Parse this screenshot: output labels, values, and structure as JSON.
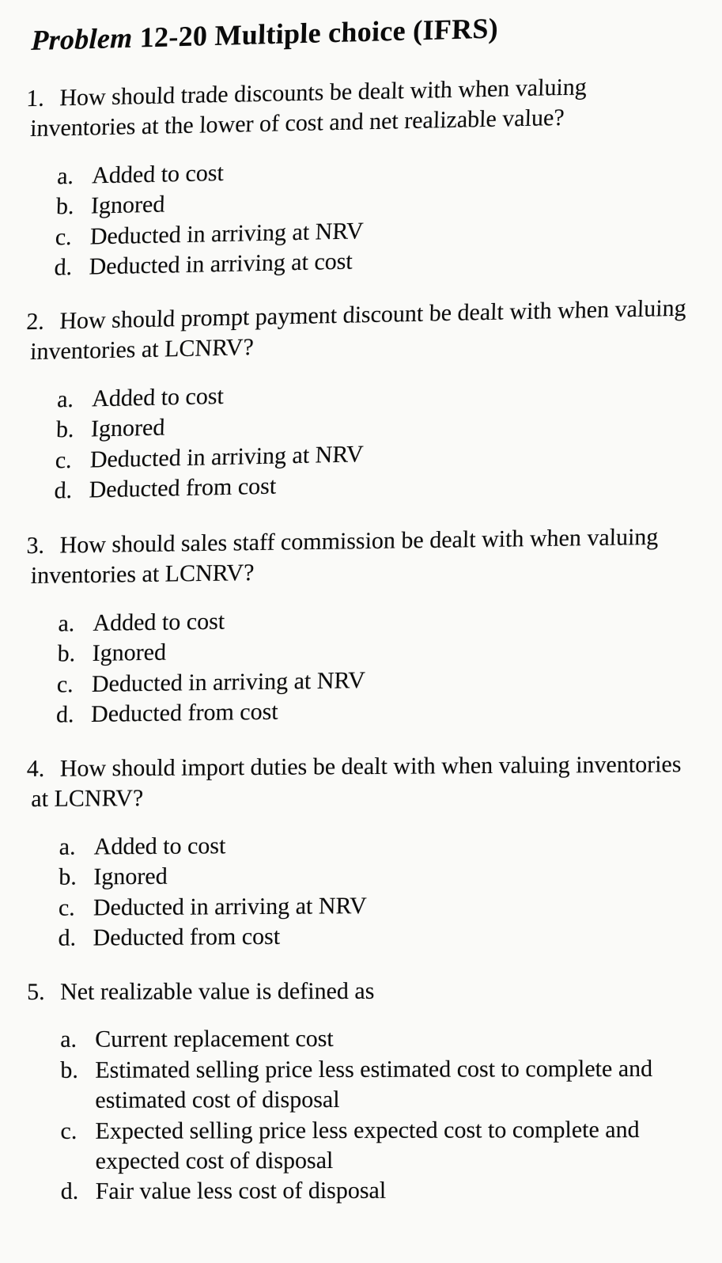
{
  "heading_prefix": "Problem",
  "heading_rest": "12-20 Multiple choice (IFRS)",
  "heading_fontsize": 36,
  "body_fontsize": 30,
  "text_color": "#111111",
  "background_color": "#f4f4f2",
  "questions": [
    {
      "number": "1.",
      "stem": "How should trade discounts be dealt with when valuing inventories at the lower of cost and net realizable value?",
      "options": [
        {
          "letter": "a.",
          "text": "Added to cost"
        },
        {
          "letter": "b.",
          "text": "Ignored"
        },
        {
          "letter": "c.",
          "text": "Deducted in arriving at NRV"
        },
        {
          "letter": "d.",
          "text": "Deducted in arriving at cost"
        }
      ]
    },
    {
      "number": "2.",
      "stem": "How should prompt payment discount be dealt with when valuing inventories at LCNRV?",
      "options": [
        {
          "letter": "a.",
          "text": "Added to cost"
        },
        {
          "letter": "b.",
          "text": "Ignored"
        },
        {
          "letter": "c.",
          "text": "Deducted in arriving at NRV"
        },
        {
          "letter": "d.",
          "text": "Deducted from cost"
        }
      ]
    },
    {
      "number": "3.",
      "stem": "How should sales staff commission be dealt with when valuing inventories at LCNRV?",
      "options": [
        {
          "letter": "a.",
          "text": "Added to cost"
        },
        {
          "letter": "b.",
          "text": "Ignored"
        },
        {
          "letter": "c.",
          "text": "Deducted in arriving at NRV"
        },
        {
          "letter": "d.",
          "text": "Deducted from cost"
        }
      ]
    },
    {
      "number": "4.",
      "stem": "How should import duties be dealt with when valuing inventories at LCNRV?",
      "options": [
        {
          "letter": "a.",
          "text": "Added to cost"
        },
        {
          "letter": "b.",
          "text": "Ignored"
        },
        {
          "letter": "c.",
          "text": "Deducted in arriving at NRV"
        },
        {
          "letter": "d.",
          "text": "Deducted from cost"
        }
      ]
    },
    {
      "number": "5.",
      "stem": "Net realizable value is defined as",
      "options": [
        {
          "letter": "a.",
          "text": "Current replacement cost"
        },
        {
          "letter": "b.",
          "text": "Estimated selling price less estimated cost to complete and estimated cost of disposal"
        },
        {
          "letter": "c.",
          "text": "Expected selling price less expected cost to complete and expected cost of disposal"
        },
        {
          "letter": "d.",
          "text": "Fair value less cost of disposal"
        }
      ]
    }
  ],
  "tilt_classes": [
    "tilt-strong",
    "tilt-strong",
    "tilt-med",
    "tilt-weak",
    "tilt-faint"
  ]
}
